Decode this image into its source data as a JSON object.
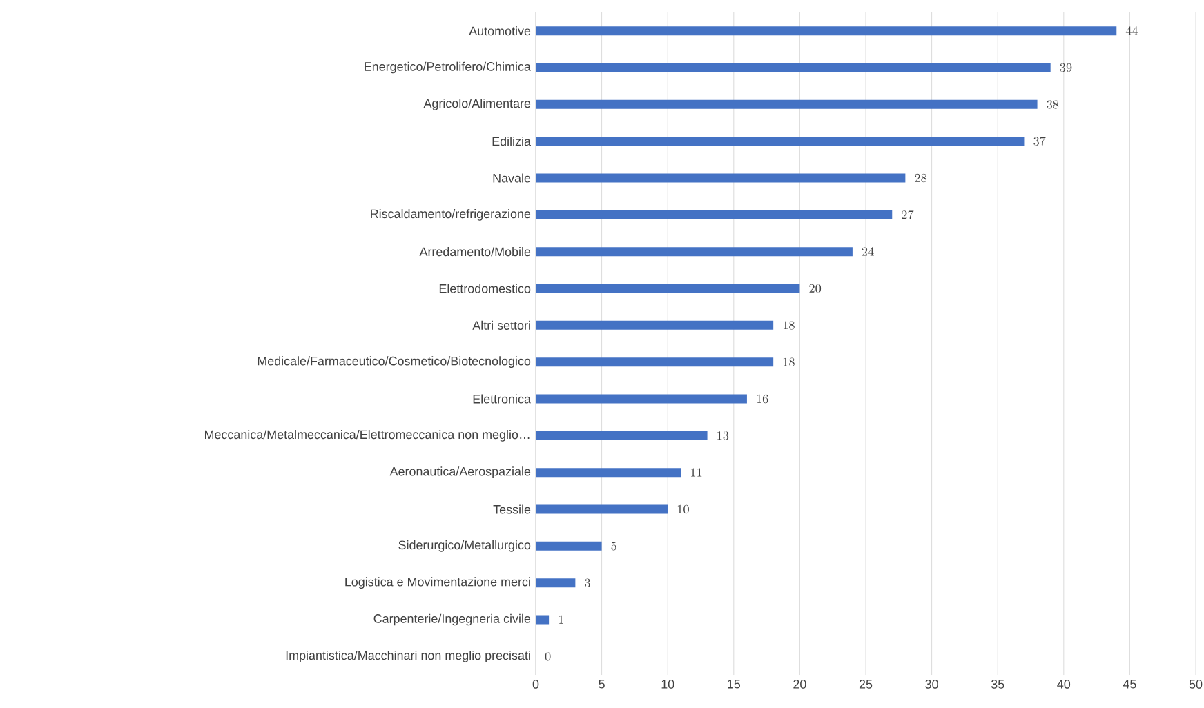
{
  "chart_data": {
    "type": "bar",
    "orientation": "horizontal",
    "categories": [
      "Automotive",
      "Energetico/Petrolifero/Chimica",
      "Agricolo/Alimentare",
      "Edilizia",
      "Navale",
      "Riscaldamento/refrigerazione",
      "Arredamento/Mobile",
      "Elettrodomestico",
      "Altri settori",
      "Medicale/Farmaceutico/Cosmetico/Biotecnologico",
      "Elettronica",
      "Meccanica/Metalmeccanica/Elettromeccanica non meglio…",
      "Aeronautica/Aerospaziale",
      "Tessile",
      "Siderurgico/Metallurgico",
      "Logistica e Movimentazione merci",
      "Carpenterie/Ingegneria civile",
      "Impiantistica/Macchinari non meglio precisati"
    ],
    "values": [
      44,
      39,
      38,
      37,
      28,
      27,
      24,
      20,
      18,
      18,
      16,
      13,
      11,
      10,
      5,
      3,
      1,
      0
    ],
    "color": "#4472c4",
    "data_labels": true,
    "grid": "x",
    "xlim": [
      0,
      50
    ],
    "xticks": [
      0,
      5,
      10,
      15,
      20,
      25,
      30,
      35,
      40,
      45,
      50
    ]
  }
}
